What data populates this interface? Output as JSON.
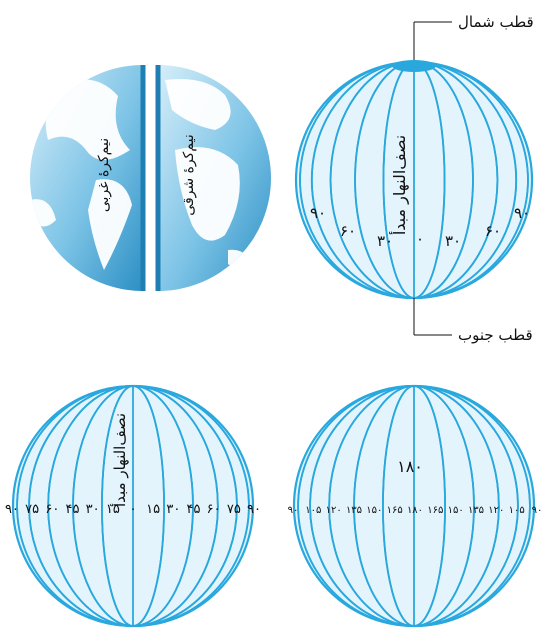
{
  "colors": {
    "stroke": "#29a8de",
    "fill": "#e3f4fc",
    "pole": "#29a8de",
    "ocean_light": "#bfe3f4",
    "ocean_dark": "#2b93c8",
    "land": "#ffffff",
    "text": "#111111"
  },
  "hemispheres": {
    "western_label": "نیم‌کرهٔ غربی",
    "eastern_label": "نیم‌کرهٔ شرقی"
  },
  "globe_top": {
    "north_pole_label": "قطب شمال",
    "south_pole_label": "قطب جنوب",
    "prime_meridian_label": "نصف‌النهار مبدأ",
    "meridian_labels": [
      "۹۰",
      "۶۰",
      "۳۰",
      "۰",
      "۳۰",
      "۶۰",
      "۹۰"
    ]
  },
  "globe_bottom_left": {
    "prime_meridian_label": "نصف‌النهار مبدأ",
    "equator_labels": [
      "۹۰",
      "۷۵",
      "۶۰",
      "۴۵",
      "۳۰",
      "۱۵",
      "۰",
      "۱۵",
      "۳۰",
      "۴۵",
      "۶۰",
      "۷۵",
      "۹۰"
    ]
  },
  "globe_bottom_right": {
    "top_label": "۱۸۰",
    "equator_labels": [
      "۹۰",
      "۱۰۵",
      "۱۲۰",
      "۱۳۵",
      "۱۵۰",
      "۱۶۵",
      "۱۸۰",
      "۱۶۵",
      "۱۵۰",
      "۱۳۵",
      "۱۲۰",
      "۱۰۵",
      "۹۰"
    ]
  }
}
